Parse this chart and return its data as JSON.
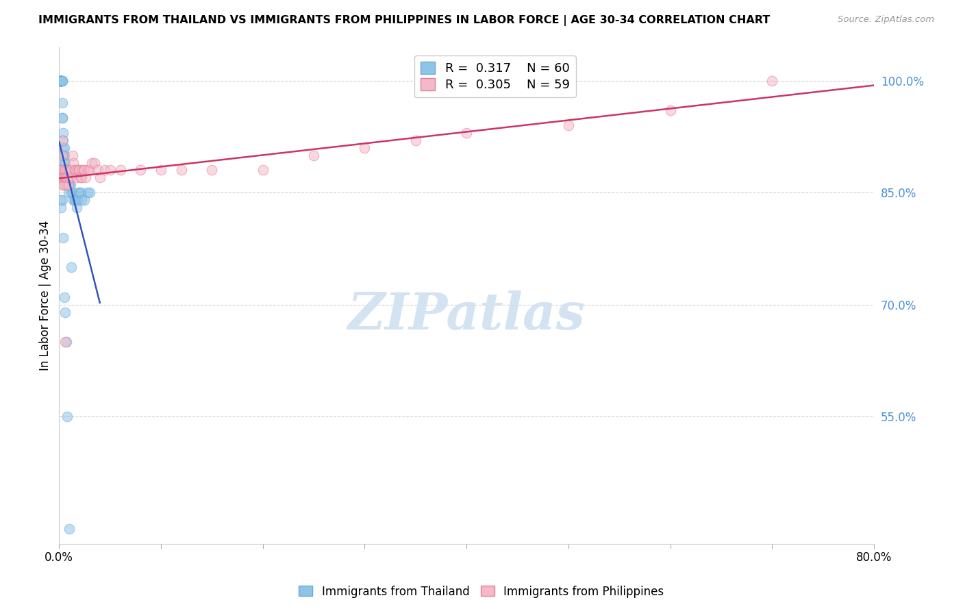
{
  "title": "IMMIGRANTS FROM THAILAND VS IMMIGRANTS FROM PHILIPPINES IN LABOR FORCE | AGE 30-34 CORRELATION CHART",
  "source": "Source: ZipAtlas.com",
  "ylabel": "In Labor Force | Age 30-34",
  "xlim": [
    0.0,
    0.8
  ],
  "ylim": [
    0.38,
    1.045
  ],
  "yticks_right": [
    1.0,
    0.85,
    0.7,
    0.55
  ],
  "ytick_right_labels": [
    "100.0%",
    "85.0%",
    "70.0%",
    "55.0%"
  ],
  "thailand_color": "#8ec4e8",
  "thailand_edge_color": "#6aaad4",
  "philippines_color": "#f5b8c8",
  "philippines_edge_color": "#e08098",
  "trend_thailand_color": "#3355bb",
  "trend_philippines_color": "#cc3366",
  "R_thailand": 0.317,
  "N_thailand": 60,
  "R_philippines": 0.305,
  "N_philippines": 59,
  "watermark_text": "ZIPatlas",
  "th_x": [
    0.0005,
    0.001,
    0.001,
    0.001,
    0.0015,
    0.0015,
    0.002,
    0.002,
    0.002,
    0.002,
    0.0025,
    0.003,
    0.003,
    0.003,
    0.003,
    0.0035,
    0.004,
    0.004,
    0.004,
    0.004,
    0.005,
    0.005,
    0.005,
    0.005,
    0.006,
    0.006,
    0.006,
    0.007,
    0.007,
    0.008,
    0.008,
    0.009,
    0.009,
    0.01,
    0.01,
    0.011,
    0.012,
    0.013,
    0.014,
    0.015,
    0.016,
    0.017,
    0.018,
    0.019,
    0.02,
    0.021,
    0.022,
    0.025,
    0.028,
    0.03,
    0.003,
    0.004,
    0.005,
    0.006,
    0.007,
    0.008,
    0.01,
    0.012,
    0.002,
    0.001
  ],
  "th_y": [
    1.0,
    1.0,
    1.0,
    1.0,
    1.0,
    1.0,
    1.0,
    1.0,
    1.0,
    1.0,
    1.0,
    1.0,
    1.0,
    0.97,
    0.95,
    0.95,
    0.93,
    0.92,
    0.91,
    0.9,
    0.91,
    0.9,
    0.89,
    0.88,
    0.89,
    0.88,
    0.87,
    0.88,
    0.87,
    0.88,
    0.87,
    0.86,
    0.85,
    0.87,
    0.86,
    0.86,
    0.85,
    0.85,
    0.84,
    0.84,
    0.84,
    0.83,
    0.84,
    0.85,
    0.85,
    0.85,
    0.84,
    0.84,
    0.85,
    0.85,
    0.84,
    0.79,
    0.71,
    0.69,
    0.65,
    0.55,
    0.4,
    0.75,
    0.83,
    0.84
  ],
  "ph_x": [
    0.001,
    0.001,
    0.002,
    0.002,
    0.003,
    0.003,
    0.003,
    0.004,
    0.004,
    0.005,
    0.005,
    0.005,
    0.006,
    0.006,
    0.007,
    0.007,
    0.008,
    0.008,
    0.009,
    0.01,
    0.01,
    0.011,
    0.012,
    0.013,
    0.014,
    0.015,
    0.016,
    0.017,
    0.018,
    0.019,
    0.02,
    0.021,
    0.022,
    0.023,
    0.024,
    0.025,
    0.026,
    0.028,
    0.03,
    0.032,
    0.035,
    0.038,
    0.04,
    0.045,
    0.05,
    0.06,
    0.08,
    0.1,
    0.12,
    0.15,
    0.2,
    0.25,
    0.3,
    0.35,
    0.4,
    0.5,
    0.6,
    0.7,
    0.006
  ],
  "ph_y": [
    0.88,
    0.87,
    0.88,
    0.87,
    0.92,
    0.9,
    0.88,
    0.87,
    0.86,
    0.88,
    0.87,
    0.86,
    0.88,
    0.87,
    0.87,
    0.86,
    0.88,
    0.87,
    0.86,
    0.88,
    0.87,
    0.87,
    0.88,
    0.9,
    0.89,
    0.88,
    0.88,
    0.87,
    0.88,
    0.88,
    0.88,
    0.87,
    0.87,
    0.88,
    0.88,
    0.88,
    0.87,
    0.88,
    0.88,
    0.89,
    0.89,
    0.88,
    0.87,
    0.88,
    0.88,
    0.88,
    0.88,
    0.88,
    0.88,
    0.88,
    0.88,
    0.9,
    0.91,
    0.92,
    0.93,
    0.94,
    0.96,
    1.0,
    0.65
  ]
}
